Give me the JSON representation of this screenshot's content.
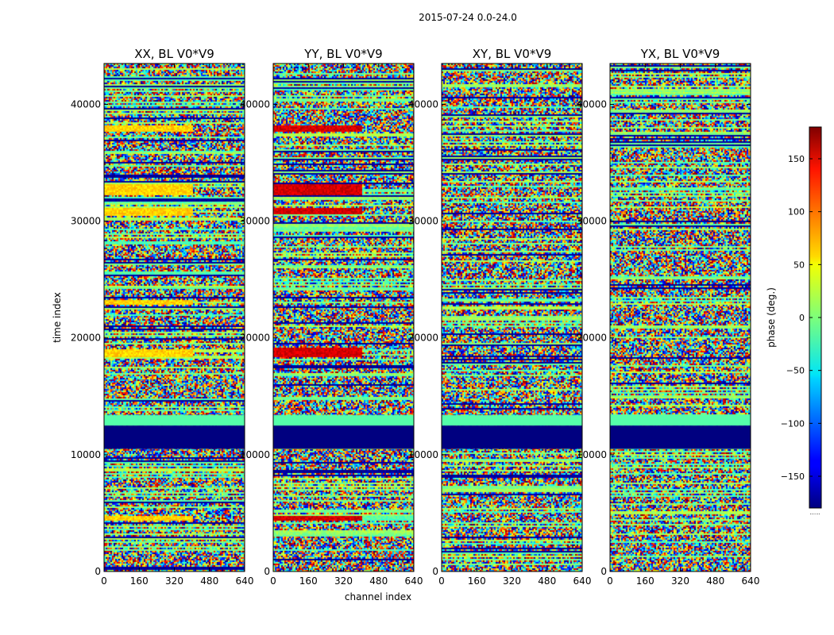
{
  "suptitle": "2015-07-24 0.0-24.0",
  "chart_data": {
    "type": "heatmap",
    "shared_xlabel": "channel index",
    "shared_ylabel": "time index",
    "xlim": [
      0,
      640
    ],
    "ylim": [
      0,
      43500
    ],
    "xticks": [
      0,
      160,
      320,
      480,
      640
    ],
    "yticks": [
      0,
      10000,
      20000,
      30000,
      40000
    ],
    "panels": [
      {
        "title": "XX, BL V0*V9",
        "label_offset": "tick labels shown",
        "hot_bands": [
          [
            4300,
            4800
          ],
          [
            18300,
            19000
          ],
          [
            22900,
            23300
          ],
          [
            30500,
            31100
          ],
          [
            32200,
            33200
          ],
          [
            37700,
            38200
          ]
        ],
        "hot_value": 60
      },
      {
        "title": "YY, BL V0*V9",
        "hot_bands": [
          [
            4300,
            4700
          ],
          [
            18300,
            19100
          ],
          [
            30600,
            31100
          ],
          [
            32200,
            33200
          ],
          [
            37700,
            38200
          ]
        ],
        "hot_value": 150
      },
      {
        "title": "XY, BL V0*V9",
        "hot_bands": [],
        "hot_value": 0
      },
      {
        "title": "YX, BL V0*V9",
        "hot_bands": [],
        "hot_value": 0
      }
    ],
    "common_bands": {
      "flagged": [
        10500,
        12500
      ],
      "flat": [
        12500,
        13400
      ]
    },
    "colorbar": {
      "label": "phase (deg.)",
      "range": [
        -180,
        180
      ],
      "ticks": [
        "150",
        "100",
        "50",
        "0",
        "−50",
        "−100",
        "−150"
      ],
      "tick_values": [
        150,
        100,
        50,
        0,
        -50,
        -100,
        -150
      ],
      "bottom_note": "......"
    }
  }
}
